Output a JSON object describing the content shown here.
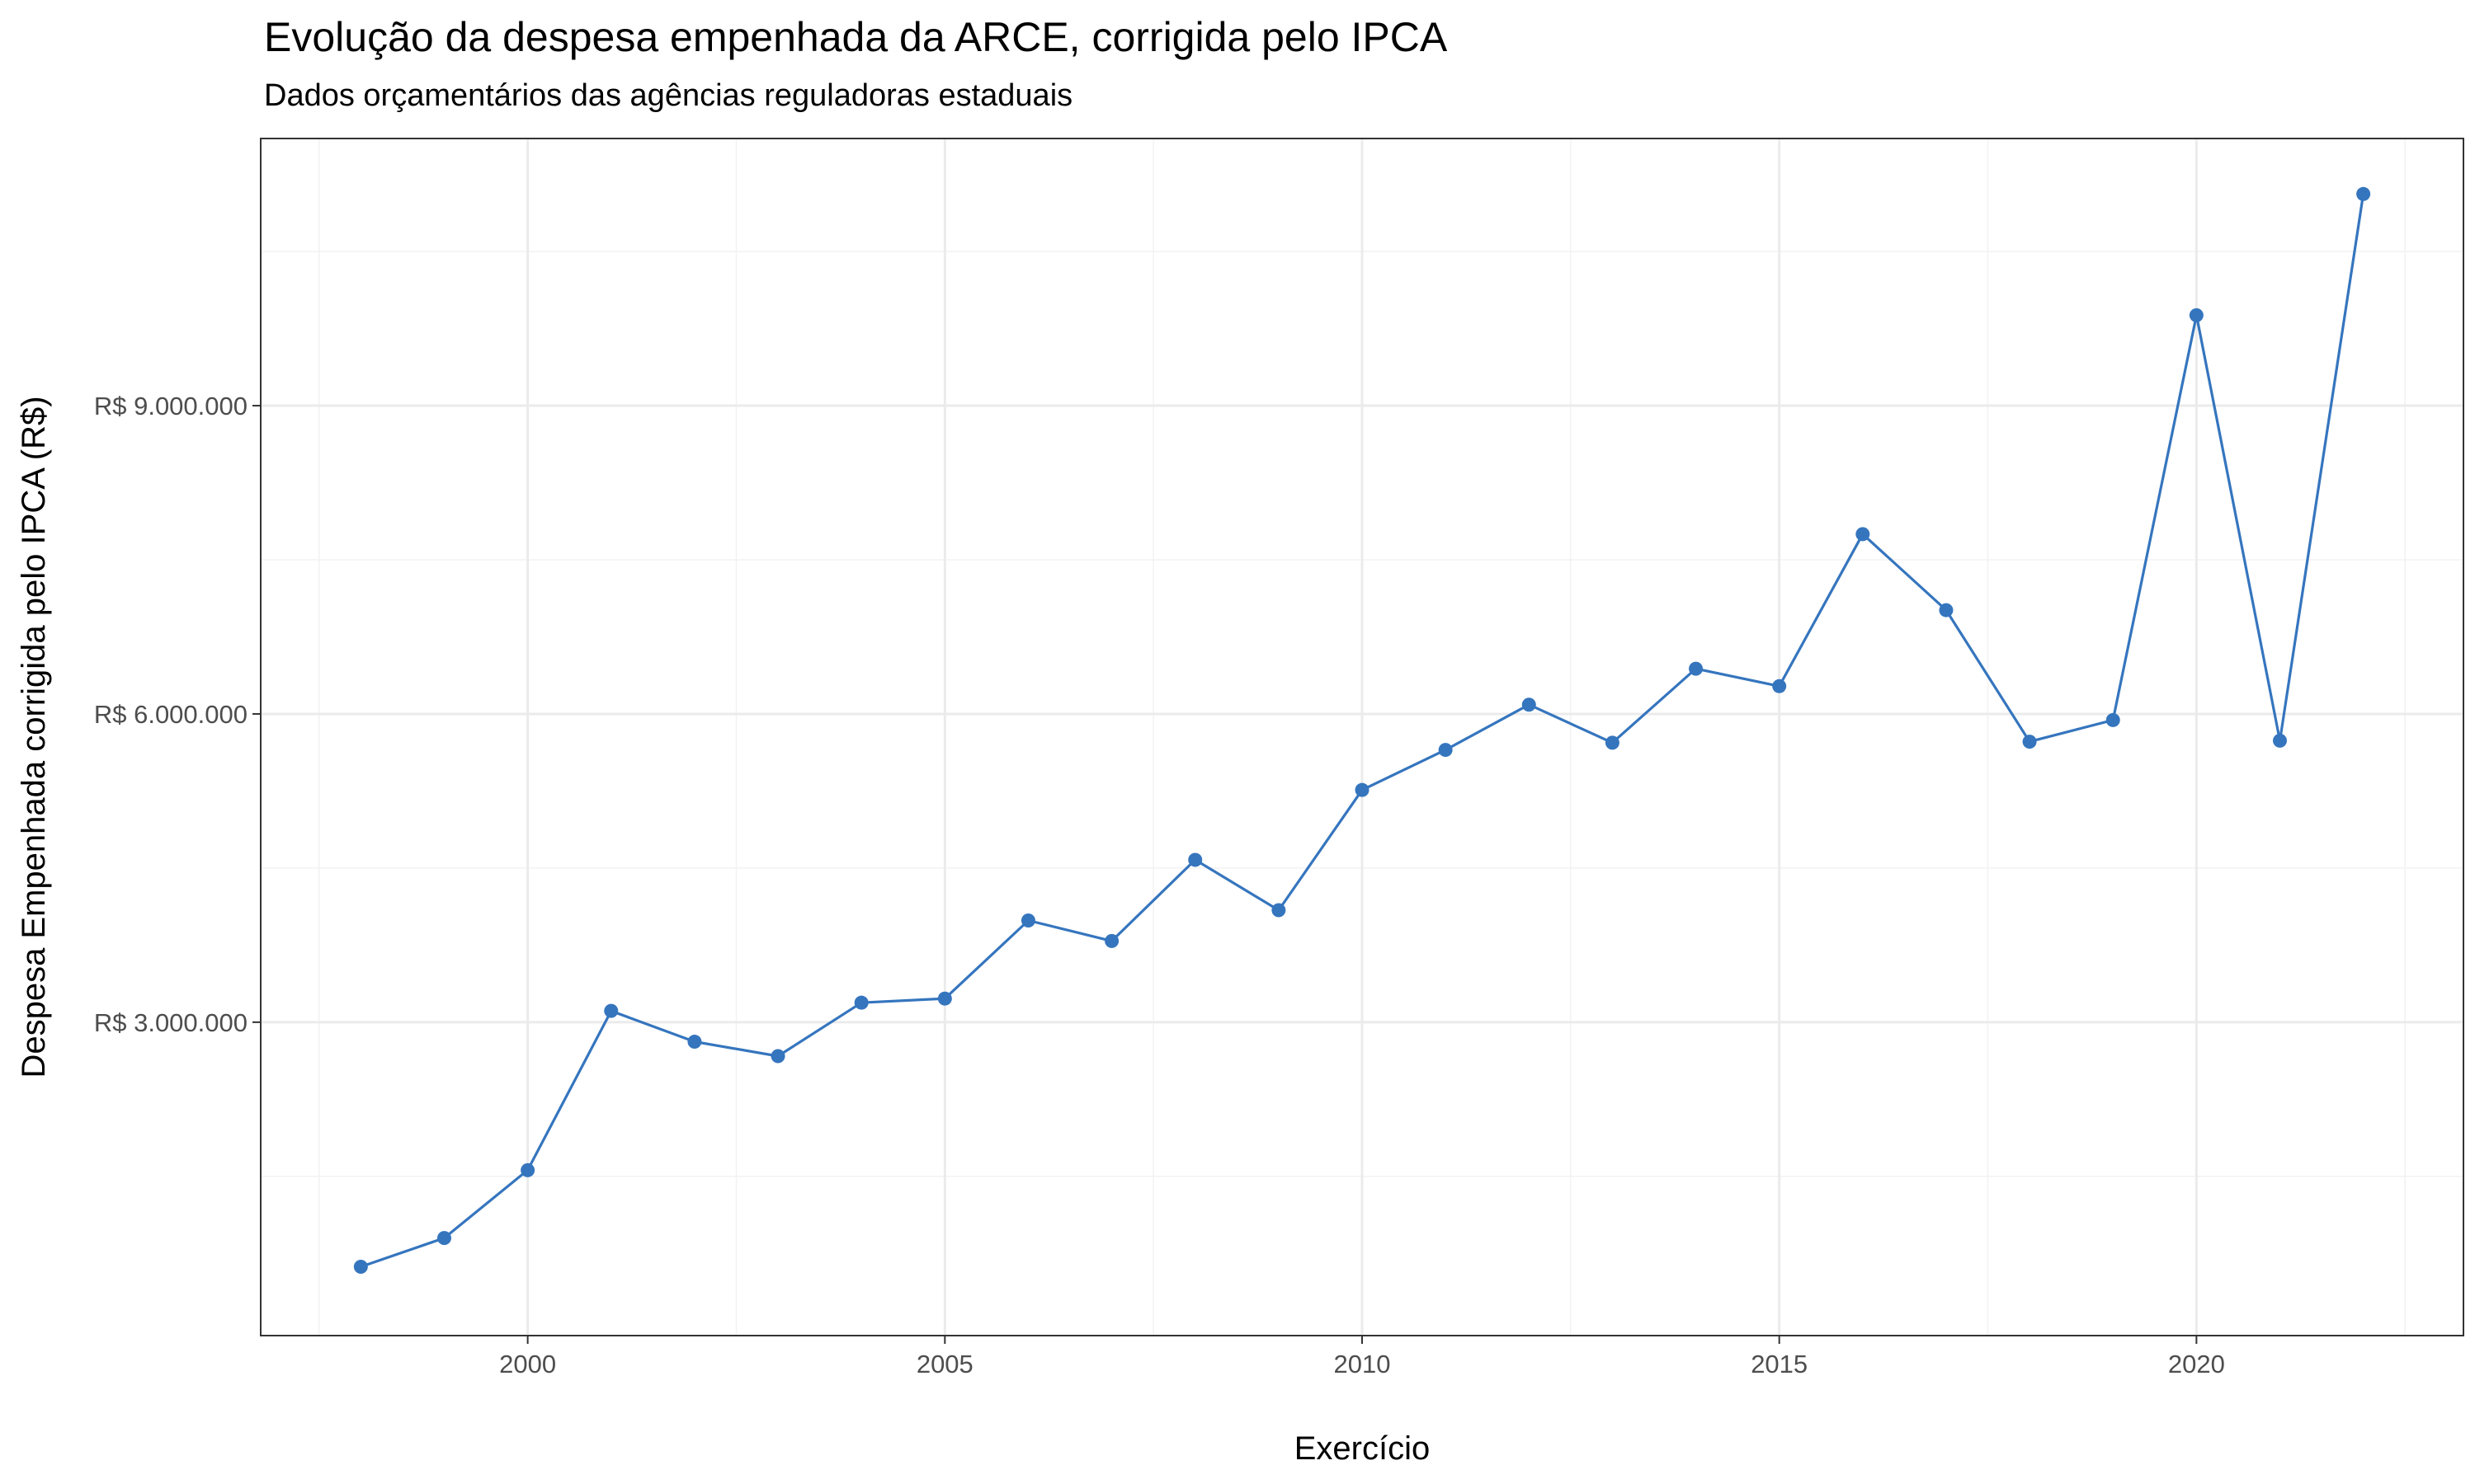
{
  "chart_data": {
    "type": "line",
    "title": "Evolução da despesa empenhada da ARCE, corrigida pelo IPCA",
    "subtitle": "Dados orçamentários das agências reguladoras estaduais",
    "xlabel": "Exercício",
    "ylabel": "Despesa Empenhada corrigida pelo IPCA (R$)",
    "xlim": [
      1996.8,
      2023.2
    ],
    "ylim": [
      -50000,
      11600000
    ],
    "x_ticks": [
      2000,
      2005,
      2010,
      2015,
      2020
    ],
    "x_tick_labels": [
      "2000",
      "2005",
      "2010",
      "2015",
      "2020"
    ],
    "y_ticks": [
      3000000,
      6000000,
      9000000
    ],
    "y_tick_labels": [
      "R$ 3.000.000",
      "R$ 6.000.000",
      "R$ 9.000.000"
    ],
    "grid": true,
    "legend": "none",
    "series": [
      {
        "color": "#3575BE",
        "x": [
          1998,
          1999,
          2000,
          2001,
          2002,
          2003,
          2004,
          2005,
          2006,
          2007,
          2008,
          2009,
          2010,
          2011,
          2012,
          2013,
          2014,
          2015,
          2016,
          2017,
          2018,
          2019,
          2020,
          2021,
          2022
        ],
        "y": [
          620000,
          900000,
          1560000,
          3110000,
          2810000,
          2670000,
          3190000,
          3230000,
          3990000,
          3790000,
          4580000,
          4090000,
          5260000,
          5650000,
          6090000,
          5720000,
          6440000,
          6270000,
          7750000,
          7010000,
          5730000,
          5940000,
          9880000,
          5740000,
          11060000
        ]
      }
    ]
  }
}
